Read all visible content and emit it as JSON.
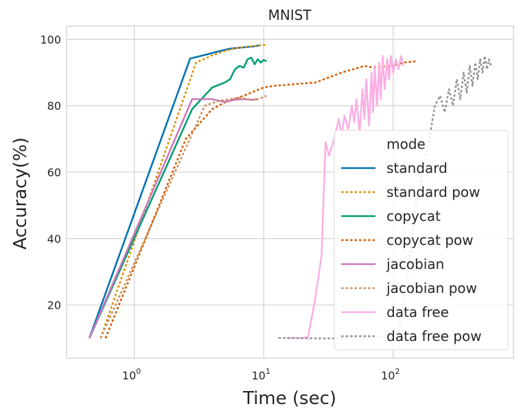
{
  "chart_data": {
    "type": "line",
    "title": "MNIST",
    "xlabel": "Time (sec)",
    "ylabel": "Accuracy(%)",
    "xscale": "log",
    "xlim": [
      0.3,
      850
    ],
    "ylim": [
      4,
      104
    ],
    "grid": true,
    "legend": {
      "title": "mode",
      "placement": "lower-right"
    },
    "x_ticks": [
      {
        "value": 1,
        "base": "10",
        "exp": "0"
      },
      {
        "value": 10,
        "base": "10",
        "exp": "1"
      },
      {
        "value": 100,
        "base": "10",
        "exp": "2"
      }
    ],
    "y_ticks": [
      20,
      40,
      60,
      80,
      100
    ],
    "series": [
      {
        "name": "standard",
        "color": "#0173b2",
        "dash": "solid",
        "points": [
          [
            0.45,
            10
          ],
          [
            2.7,
            94.2
          ],
          [
            3.5,
            95.3
          ],
          [
            4.5,
            96.4
          ],
          [
            5.5,
            97.2
          ],
          [
            7,
            97.6
          ],
          [
            8.5,
            97.9
          ],
          [
            9.5,
            98.3
          ]
        ]
      },
      {
        "name": "standard pow",
        "color": "#de8f05",
        "dash": "dotted",
        "points": [
          [
            0.55,
            10
          ],
          [
            3,
            93
          ],
          [
            4,
            95.2
          ],
          [
            5,
            96.5
          ],
          [
            6,
            97.3
          ],
          [
            7.5,
            97.8
          ],
          [
            9,
            98.1
          ],
          [
            10.5,
            98.4
          ]
        ]
      },
      {
        "name": "copycat",
        "color": "#029e73",
        "dash": "solid",
        "points": [
          [
            0.45,
            10
          ],
          [
            2.8,
            79
          ],
          [
            4,
            85.5
          ],
          [
            5,
            87
          ],
          [
            5.5,
            88
          ],
          [
            6,
            91
          ],
          [
            6.5,
            92
          ],
          [
            7,
            91.5
          ],
          [
            7.5,
            94
          ],
          [
            8,
            94.5
          ],
          [
            8.5,
            92.5
          ],
          [
            9,
            94
          ],
          [
            9.5,
            93
          ],
          [
            10,
            93.8
          ],
          [
            10.5,
            93.4
          ]
        ]
      },
      {
        "name": "copycat pow",
        "color": "#d55e00",
        "dash": "dotted",
        "points": [
          [
            0.6,
            10
          ],
          [
            2.5,
            70
          ],
          [
            4,
            79
          ],
          [
            5,
            81
          ],
          [
            7,
            83
          ],
          [
            10,
            85.5
          ],
          [
            12,
            86
          ],
          [
            25,
            87
          ],
          [
            40,
            90
          ],
          [
            60,
            92
          ],
          [
            70,
            91.5
          ],
          [
            80,
            91.8
          ],
          [
            100,
            92
          ],
          [
            120,
            93
          ],
          [
            150,
            93.4
          ]
        ]
      },
      {
        "name": "jacobian",
        "color": "#cc78bc",
        "dash": "solid",
        "points": [
          [
            0.45,
            10
          ],
          [
            2.8,
            82
          ],
          [
            3.5,
            82
          ],
          [
            4,
            82
          ],
          [
            4.5,
            81.5
          ],
          [
            5,
            81.2
          ],
          [
            5.5,
            81.5
          ],
          [
            6,
            81.8
          ],
          [
            7,
            82
          ],
          [
            8,
            81.8
          ],
          [
            9,
            82
          ]
        ]
      },
      {
        "name": "jacobian pow",
        "color": "#ca9161",
        "dash": "dotted",
        "points": [
          [
            0.55,
            10
          ],
          [
            3.5,
            80
          ],
          [
            4.5,
            81.5
          ],
          [
            5.5,
            82
          ],
          [
            6.5,
            82.5
          ],
          [
            7.5,
            82
          ],
          [
            8.5,
            81.7
          ],
          [
            9.5,
            82.3
          ],
          [
            10.5,
            83
          ]
        ]
      },
      {
        "name": "data free",
        "color": "#fbafe4",
        "dash": "solid",
        "points": [
          [
            15,
            10.1
          ],
          [
            16,
            10
          ],
          [
            17,
            10.2
          ],
          [
            18,
            10
          ],
          [
            20,
            10.1
          ],
          [
            22,
            10.3
          ],
          [
            25,
            22
          ],
          [
            28,
            35
          ],
          [
            30,
            69
          ],
          [
            32,
            65
          ],
          [
            35,
            70
          ],
          [
            38,
            76
          ],
          [
            40,
            71
          ],
          [
            42,
            77
          ],
          [
            45,
            73
          ],
          [
            48,
            80
          ],
          [
            50,
            75
          ],
          [
            52,
            82
          ],
          [
            55,
            72
          ],
          [
            58,
            85
          ],
          [
            60,
            76
          ],
          [
            62,
            88
          ],
          [
            65,
            74
          ],
          [
            68,
            90
          ],
          [
            70,
            78
          ],
          [
            72,
            92
          ],
          [
            75,
            80
          ],
          [
            78,
            93
          ],
          [
            80,
            82
          ],
          [
            83,
            95
          ],
          [
            86,
            85
          ],
          [
            90,
            94
          ],
          [
            93,
            88
          ],
          [
            96,
            95
          ],
          [
            100,
            90
          ],
          [
            105,
            94
          ],
          [
            110,
            91
          ],
          [
            115,
            95
          ],
          [
            120,
            92
          ]
        ]
      },
      {
        "name": "data free pow",
        "color": "#949494",
        "dash": "dotted",
        "points": [
          [
            13,
            10.1
          ],
          [
            20,
            10
          ],
          [
            30,
            9.9
          ],
          [
            50,
            10.1
          ],
          [
            80,
            10.2
          ],
          [
            110,
            12
          ],
          [
            130,
            30
          ],
          [
            150,
            50
          ],
          [
            170,
            60
          ],
          [
            190,
            70
          ],
          [
            210,
            80
          ],
          [
            230,
            83
          ],
          [
            250,
            78
          ],
          [
            270,
            85
          ],
          [
            290,
            80
          ],
          [
            310,
            88
          ],
          [
            330,
            82
          ],
          [
            350,
            90
          ],
          [
            370,
            84
          ],
          [
            390,
            92
          ],
          [
            410,
            86
          ],
          [
            430,
            93
          ],
          [
            450,
            88
          ],
          [
            470,
            94
          ],
          [
            490,
            90
          ],
          [
            510,
            95
          ],
          [
            530,
            91
          ],
          [
            550,
            94
          ],
          [
            570,
            92
          ]
        ]
      }
    ]
  }
}
